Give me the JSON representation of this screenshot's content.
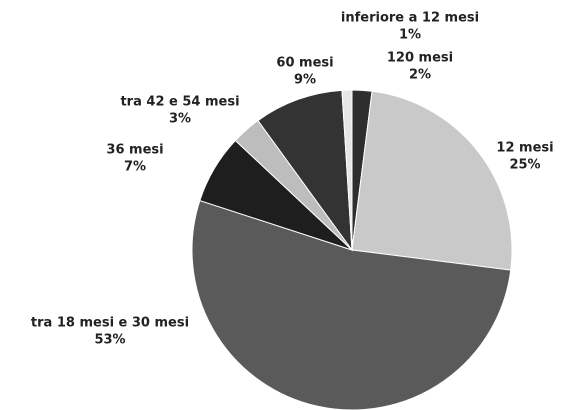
{
  "chart_data": {
    "type": "pie",
    "categories": [
      "120 mesi",
      "12 mesi",
      "tra 18 mesi e 30 mesi",
      "36 mesi",
      "tra 42 e 54 mesi",
      "60 mesi",
      "inferiore a 12 mesi"
    ],
    "values": [
      2,
      25,
      53,
      7,
      3,
      9,
      1
    ],
    "value_labels": [
      "2%",
      "25%",
      "53%",
      "7%",
      "3%",
      "9%",
      "1%"
    ],
    "colors": [
      "#2e2e2e",
      "#c9c9c9",
      "#5a5a5a",
      "#1e1e1e",
      "#bdbdbd",
      "#333333",
      "#e6e6e6"
    ]
  }
}
